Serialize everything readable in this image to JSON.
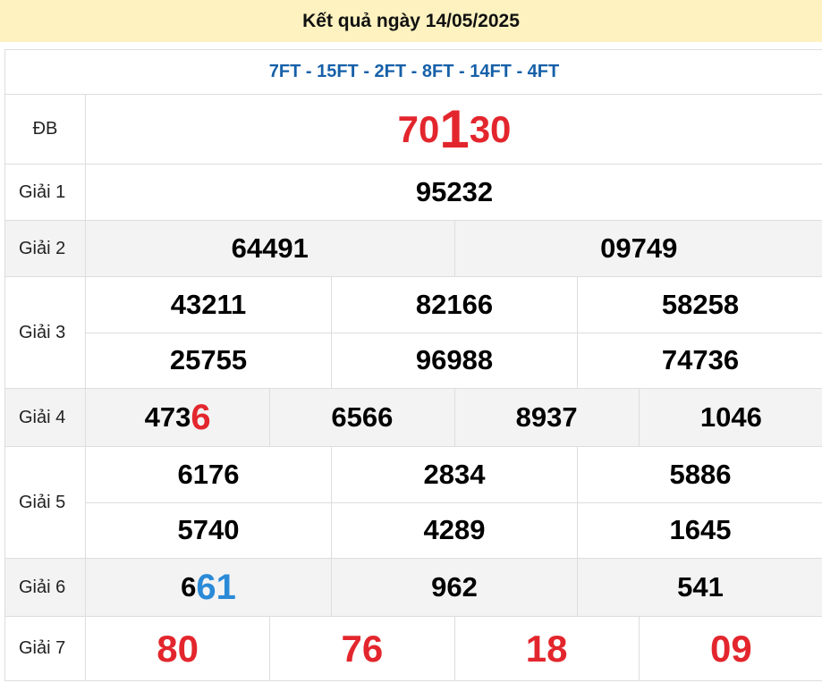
{
  "header": {
    "title": "Kết quả ngày 14/05/2025"
  },
  "codes": "7FT - 15FT - 2FT - 8FT - 14FT - 4FT",
  "colors": {
    "header_bg": "#fdf2c0",
    "code": "#1660a8",
    "red": "#e3262d",
    "blue": "#2b8ad8"
  },
  "prizes": [
    {
      "label": "ĐB",
      "cls": "db",
      "height": 78,
      "rows": [
        [
          [
            {
              "t": "70",
              "c": "red"
            },
            {
              "t": "1",
              "c": "red big"
            },
            {
              "t": "30",
              "c": "red"
            }
          ]
        ]
      ]
    },
    {
      "label": "Giải 1",
      "height": 63,
      "rows": [
        [
          [
            {
              "t": "95232"
            }
          ]
        ]
      ]
    },
    {
      "label": "Giải 2",
      "gray": true,
      "height": 63,
      "rows": [
        [
          [
            {
              "t": "64491"
            }
          ],
          [
            {
              "t": "09749"
            }
          ]
        ]
      ]
    },
    {
      "label": "Giải 3",
      "height": 125,
      "rows": [
        [
          [
            {
              "t": "43211"
            }
          ],
          [
            {
              "t": "82166"
            }
          ],
          [
            {
              "t": "58258"
            }
          ]
        ],
        [
          [
            {
              "t": "25755"
            }
          ],
          [
            {
              "t": "96988"
            }
          ],
          [
            {
              "t": "74736"
            }
          ]
        ]
      ]
    },
    {
      "label": "Giải 4",
      "gray": true,
      "height": 65,
      "rows": [
        [
          [
            {
              "t": "473"
            },
            {
              "t": "6",
              "c": "red big2"
            }
          ],
          [
            {
              "t": "6566"
            }
          ],
          [
            {
              "t": "8937"
            }
          ],
          [
            {
              "t": "1046"
            }
          ]
        ]
      ]
    },
    {
      "label": "Giải 5",
      "height": 125,
      "rows": [
        [
          [
            {
              "t": "6176"
            }
          ],
          [
            {
              "t": "2834"
            }
          ],
          [
            {
              "t": "5886"
            }
          ]
        ],
        [
          [
            {
              "t": "5740"
            }
          ],
          [
            {
              "t": "4289"
            }
          ],
          [
            {
              "t": "1645"
            }
          ]
        ]
      ]
    },
    {
      "label": "Giải 6",
      "gray": true,
      "height": 65,
      "rows": [
        [
          [
            {
              "t": "6"
            },
            {
              "t": "61",
              "c": "blue"
            }
          ],
          [
            {
              "t": "962"
            }
          ],
          [
            {
              "t": "541"
            }
          ]
        ]
      ]
    },
    {
      "label": "Giải 7",
      "cls": "g7",
      "height": 72,
      "rows": [
        [
          [
            {
              "t": "80",
              "c": "red"
            }
          ],
          [
            {
              "t": "76",
              "c": "red"
            }
          ],
          [
            {
              "t": "18",
              "c": "red"
            }
          ],
          [
            {
              "t": "09",
              "c": "red"
            }
          ]
        ]
      ]
    }
  ]
}
